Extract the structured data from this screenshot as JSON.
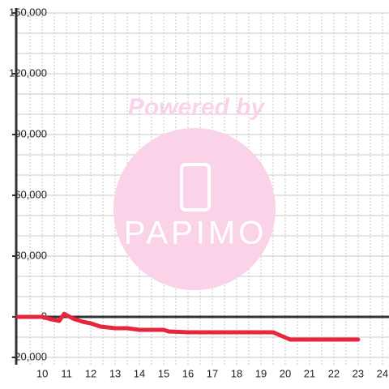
{
  "watermark": {
    "line1": "Powered by",
    "line2": "PAPIMO"
  },
  "chart_data": {
    "type": "line",
    "x": [
      9,
      10,
      10.3,
      10.7,
      10.9,
      11.3,
      11.7,
      12,
      12.4,
      13,
      13.5,
      14,
      15,
      15.2,
      16,
      19.5,
      20.2,
      23
    ],
    "series": [
      {
        "color": "#e8253a",
        "values": [
          0,
          0,
          -1000,
          -2000,
          1500,
          -1000,
          -2500,
          -3200,
          -4800,
          -5600,
          -5600,
          -6400,
          -6400,
          -7200,
          -7600,
          -7600,
          -11200,
          -11200
        ]
      }
    ],
    "xlim": [
      8.93,
      24.27
    ],
    "ylim": [
      -23600,
      150000
    ],
    "xticks": [
      10,
      11,
      12,
      13,
      14,
      15,
      16,
      17,
      18,
      19,
      20,
      21,
      22,
      23,
      24
    ],
    "yticks": [
      {
        "value": -20000,
        "label": "-20,000"
      },
      0,
      {
        "value": 30000,
        "label": "30,000"
      },
      {
        "value": 60000,
        "label": "60,000"
      },
      {
        "value": 90000,
        "label": "90,000"
      },
      {
        "value": 120000,
        "label": "120,000"
      },
      {
        "value": 150000,
        "label": "150,000"
      }
    ],
    "ygrid": [
      -20000,
      -10000,
      0,
      10000,
      20000,
      30000,
      40000,
      50000,
      60000,
      70000,
      80000,
      90000,
      100000,
      110000,
      120000,
      130000,
      140000,
      150000
    ],
    "xgrid": [
      9.5,
      10,
      10.5,
      11,
      11.5,
      12,
      12.5,
      13,
      13.5,
      14,
      14.5,
      15,
      15.5,
      16,
      16.5,
      17,
      17.5,
      18,
      18.5,
      19,
      19.5,
      20,
      20.5,
      21,
      21.5,
      22,
      22.5,
      23,
      23.5,
      24
    ],
    "grid": true
  }
}
